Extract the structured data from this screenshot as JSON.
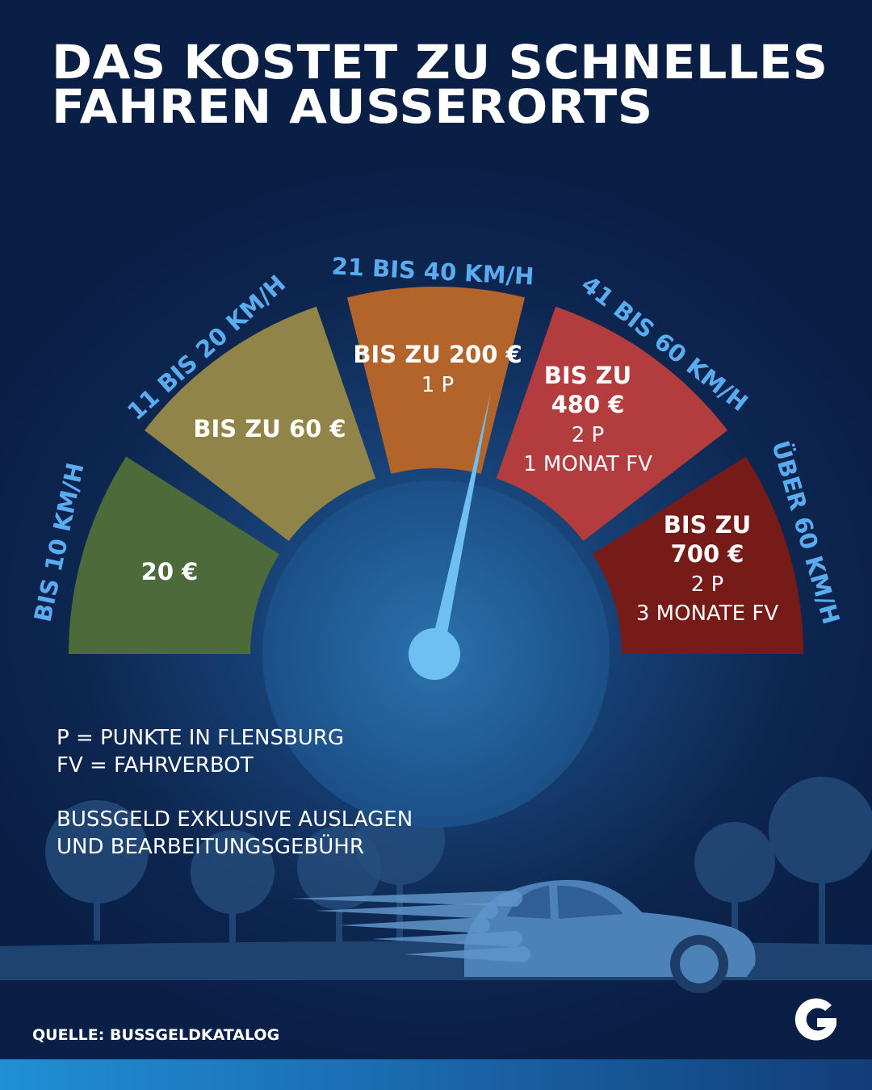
{
  "title": {
    "line1": "DAS KOSTET ZU SCHNELLES",
    "line2": "FAHREN AUSSERORTS"
  },
  "segments": [
    {
      "range": "BIS 10 KM/H",
      "lines": [
        "20 €"
      ],
      "bold_lines": 1,
      "color": "#4c6a3a"
    },
    {
      "range": "11 BIS 20 KM/H",
      "lines": [
        "BIS ZU 60 €"
      ],
      "bold_lines": 1,
      "color": "#918449"
    },
    {
      "range": "21 BIS 40 KM/H",
      "lines": [
        "BIS ZU 200 €",
        "1 P"
      ],
      "bold_lines": 1,
      "color": "#b2642a"
    },
    {
      "range": "41 BIS 60 KM/H",
      "lines": [
        "BIS ZU",
        "480 €",
        "2 P",
        "1 MONAT FV"
      ],
      "bold_lines": 2,
      "color": "#b23c3e"
    },
    {
      "range": "ÜBER 60 KM/H",
      "lines": [
        "BIS ZU",
        "700 €",
        "2 P",
        "3 MONATE FV"
      ],
      "bold_lines": 2,
      "color": "#771b18"
    }
  ],
  "legend": {
    "abbreviations": [
      "P = PUNKTE IN FLENSBURG",
      "FV = FAHRVERBOT"
    ],
    "note": [
      "BUSSGELD EXKLUSIVE AUSLAGEN",
      "UND BEARBEITUNGSGEBÜHR"
    ]
  },
  "source": "QUELLE: BUSSGELDKATALOG",
  "logo_letter": "G",
  "colors": {
    "range_label": "#5aacf0",
    "needle": "#6fc0f2",
    "silhouette": "#27507f"
  },
  "icons": [
    "speedometer-needle-icon",
    "car-silhouette-icon",
    "tree-silhouette-icon",
    "g-logo-icon"
  ]
}
